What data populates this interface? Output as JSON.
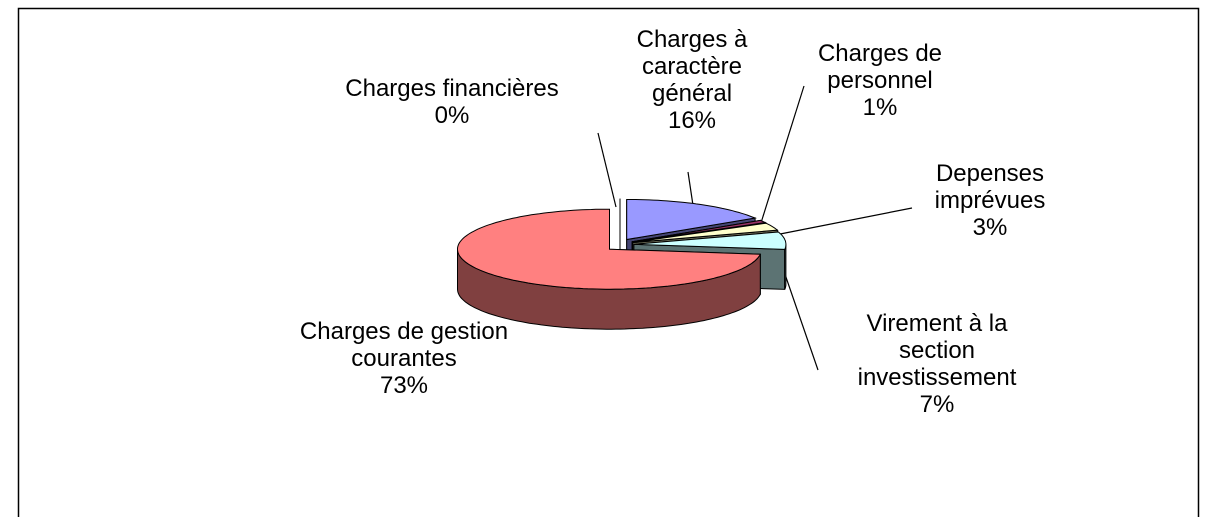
{
  "chart_data": {
    "type": "pie3d",
    "categories": [
      "Charges à caractère général",
      "Charges de personnel",
      "Depenses imprévues",
      "Virement à la section investissement",
      "Charges de gestion courantes",
      "Charges financières"
    ],
    "values": [
      16,
      1,
      3,
      7,
      73,
      0
    ],
    "value_labels": [
      "16%",
      "1%",
      "3%",
      "7%",
      "73%",
      "0%"
    ],
    "colors": [
      "#9999ff",
      "#993366",
      "#ffffcc",
      "#ccffff",
      "#ff8080",
      "#0066cc"
    ]
  }
}
